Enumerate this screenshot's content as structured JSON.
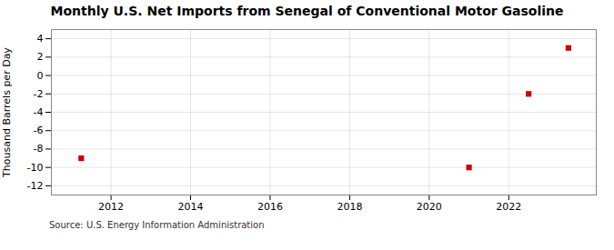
{
  "chart_data": {
    "type": "scatter",
    "title": "Monthly U.S. Net Imports from Senegal of Conventional Motor Gasoline",
    "ylabel": "Thousand Barrels per Day",
    "annotations": [
      "Source: U.S. Energy Information Administration"
    ],
    "x": [
      2011.25,
      2021.0,
      2022.5,
      2023.5
    ],
    "values": [
      -9.0,
      -10.0,
      -2.0,
      3.0
    ],
    "color": "#cc0000",
    "marker": "square",
    "xlim": [
      2010.5,
      2024.2
    ],
    "ylim": [
      -13,
      5
    ],
    "xticks": [
      2012,
      2014,
      2016,
      2018,
      2020,
      2022
    ],
    "yticks": [
      -12,
      -10,
      -8,
      -6,
      -4,
      -2,
      0,
      2,
      4
    ],
    "grid": true
  }
}
